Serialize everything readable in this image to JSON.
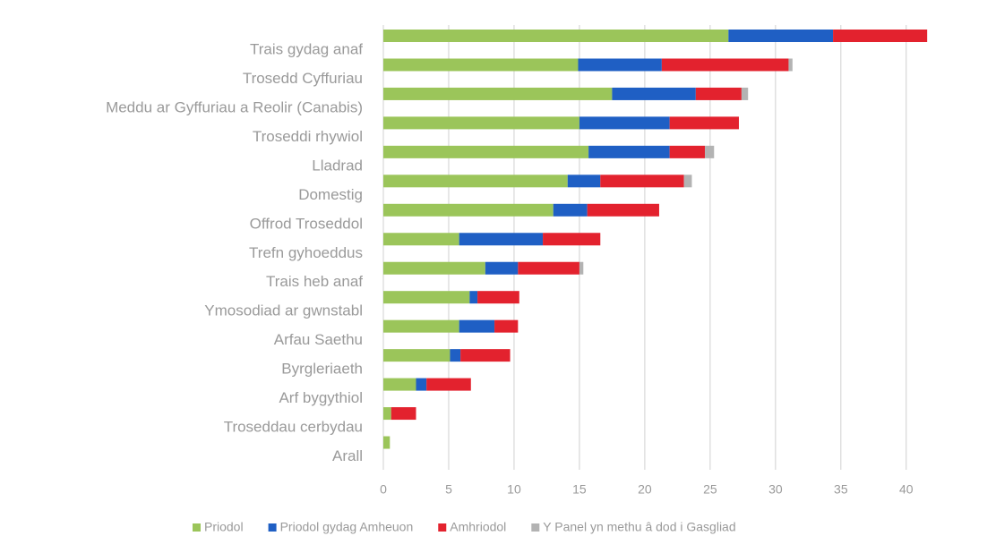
{
  "chart_data": {
    "type": "stacked_bar_horizontal",
    "categories": [
      "Trais gydag anaf",
      "Trosedd Cyffuriau",
      "Meddu ar Gyffuriau a Reolir (Canabis)",
      "Troseddi rhywiol",
      "Lladrad",
      "Domestig",
      "Offrod Troseddol",
      "Trefn gyhoeddus",
      "Trais heb anaf",
      "Ymosodiad ar gwnstabl",
      "Arfau Saethu",
      "Byrgleriaeth",
      "Arf bygythiol",
      "Troseddau cerbydau",
      "Arall"
    ],
    "series": [
      {
        "name": "Priodol",
        "color": "#9bc55a",
        "values": [
          26.4,
          14.9,
          17.5,
          15.0,
          15.7,
          14.1,
          13.0,
          5.8,
          7.8,
          6.6,
          5.8,
          5.1,
          2.5,
          0.6,
          0.5
        ]
      },
      {
        "name": "Priodol gydag Amheuon",
        "color": "#1f5fc4",
        "values": [
          8.0,
          6.4,
          6.4,
          6.9,
          6.2,
          2.5,
          2.6,
          6.4,
          2.5,
          0.6,
          2.7,
          0.8,
          0.8,
          0,
          0
        ]
      },
      {
        "name": "Amhriodol",
        "color": "#e3222e",
        "values": [
          7.2,
          9.7,
          3.5,
          5.3,
          2.7,
          6.4,
          5.5,
          4.4,
          4.7,
          3.2,
          1.8,
          3.8,
          3.4,
          1.9,
          0
        ]
      },
      {
        "name": "Y Panel yn methu â dod i Gasgliad",
        "color": "#b3b3b3",
        "values": [
          0,
          0.3,
          0.5,
          0,
          0.7,
          0.6,
          0,
          0,
          0.3,
          0,
          0,
          0,
          0,
          0,
          0
        ]
      }
    ],
    "xlim": [
      0,
      42
    ],
    "xticks": [
      0,
      5,
      10,
      15,
      20,
      25,
      30,
      35,
      40
    ],
    "grid": true
  }
}
